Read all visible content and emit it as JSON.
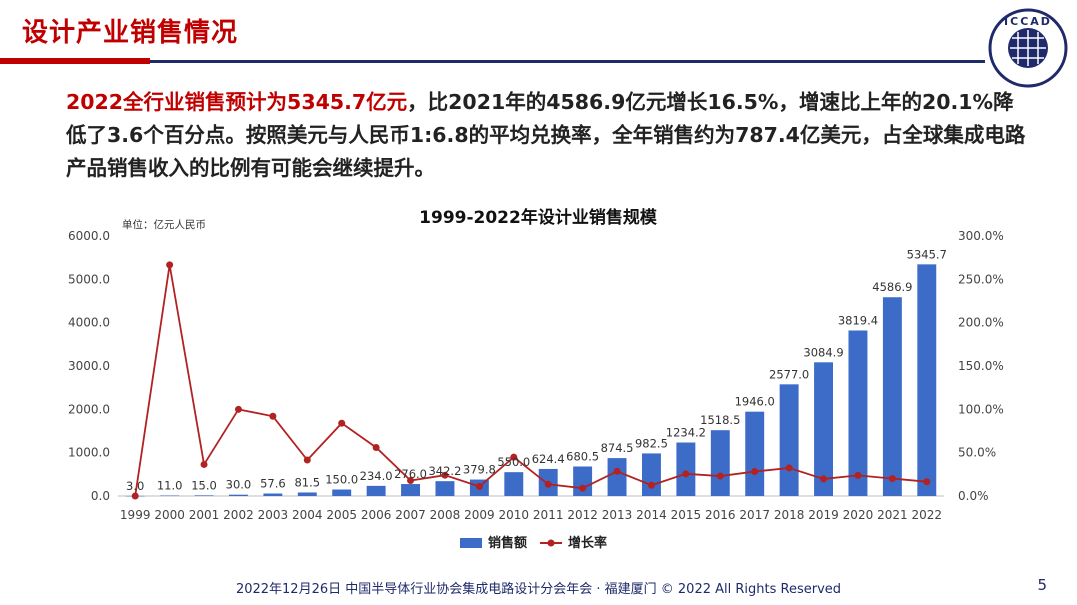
{
  "slide": {
    "title": "设计产业销售情况",
    "paragraph_highlight": "2022全行业销售预计为5345.7亿元",
    "paragraph_rest": "，比2021年的4586.9亿元增长16.5%，增速比上年的20.1%降低了3.6个百分点。按照美元与人民币1:6.8的平均兑换率，全年销售约为787.4亿美元，占全球集成电路产品销售收入的比例有可能会继续提升。",
    "footer": "2022年12月26日 中国半导体行业协会集成电路设计分会年会 · 福建厦门 © 2022 All Rights Reserved",
    "page_number": "5",
    "logo_text": "ICCAD",
    "colors": {
      "accent_red": "#c00000",
      "navy": "#1f2a6b"
    }
  },
  "chart_data": {
    "type": "bar",
    "title": "1999-2022年设计业销售规模",
    "unit_note": "单位：亿元人民币",
    "categories": [
      "1999",
      "2000",
      "2001",
      "2002",
      "2003",
      "2004",
      "2005",
      "2006",
      "2007",
      "2008",
      "2009",
      "2010",
      "2011",
      "2012",
      "2013",
      "2014",
      "2015",
      "2016",
      "2017",
      "2018",
      "2019",
      "2020",
      "2021",
      "2022"
    ],
    "series": [
      {
        "name": "销售额",
        "type": "bar",
        "axis": "left",
        "color": "#3c6cc8",
        "values": [
          3.0,
          11.0,
          15.0,
          30.0,
          57.6,
          81.5,
          150.0,
          234.0,
          276.0,
          342.2,
          379.8,
          550.0,
          624.4,
          680.5,
          874.5,
          982.5,
          1234.2,
          1518.5,
          1946.0,
          2577.0,
          3084.9,
          3819.4,
          4586.9,
          5345.7
        ],
        "labels": [
          "3.0",
          "11.0",
          "15.0",
          "30.0",
          "57.6",
          "81.5",
          "150.0",
          "234.0",
          "276.0",
          "342.2",
          "379.8",
          "550.0",
          "624.4",
          "680.5",
          "874.5",
          "982.5",
          "1234.2",
          "1518.5",
          "1946.0",
          "2577.0",
          "3084.9",
          "3819.4",
          "4586.9",
          "5345.7"
        ]
      },
      {
        "name": "增长率",
        "type": "line",
        "axis": "right",
        "color": "#b22222",
        "values": [
          0,
          266.7,
          36.4,
          100.0,
          92.0,
          41.5,
          84.0,
          56.0,
          17.9,
          24.0,
          11.0,
          44.8,
          13.5,
          9.0,
          28.5,
          12.4,
          25.6,
          23.0,
          28.2,
          32.4,
          19.7,
          23.8,
          20.1,
          16.5
        ]
      }
    ],
    "ylim": [
      0,
      6000
    ],
    "yticks": [
      "0.0",
      "1000.0",
      "2000.0",
      "3000.0",
      "4000.0",
      "5000.0",
      "6000.0"
    ],
    "y2lim": [
      0,
      300
    ],
    "y2ticks": [
      "0.0%",
      "50.0%",
      "100.0%",
      "150.0%",
      "200.0%",
      "250.0%",
      "300.0%"
    ],
    "grid": false,
    "legend_position": "bottom"
  }
}
